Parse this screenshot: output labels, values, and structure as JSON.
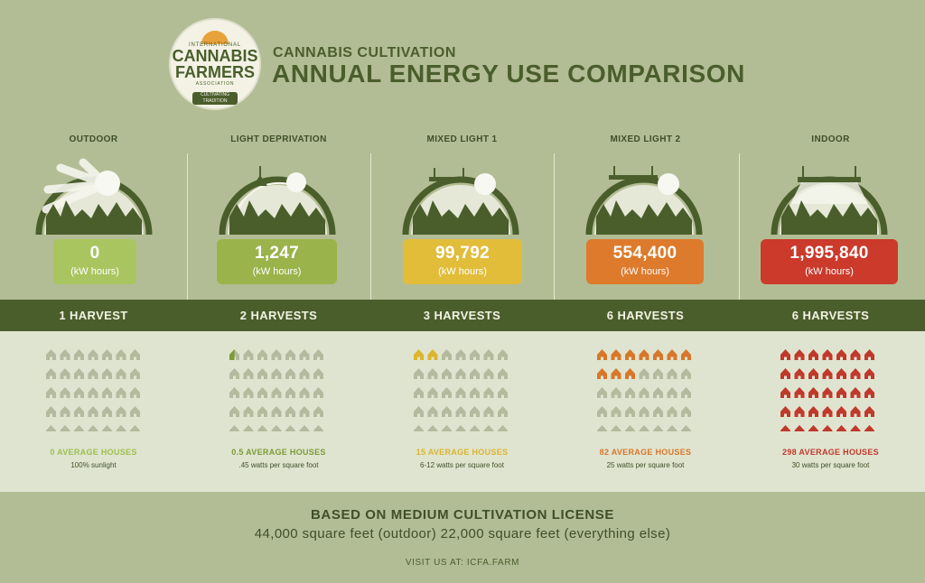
{
  "logo": {
    "line1": "INTERNATIONAL",
    "line2": "CANNABIS",
    "line3": "FARMERS",
    "line4": "ASSOCIATION",
    "ribbon": "CULTIVATING TRADITION"
  },
  "header": {
    "subtitle": "CANNABIS CULTIVATION",
    "title": "ANNUAL ENERGY USE COMPARISON"
  },
  "unit_label": "(kW hours)",
  "colors": {
    "background": "#b3bd95",
    "dark_green": "#4a5e2c",
    "house_grey": "#b4ba9e",
    "lower_panel": "#dfe4d0"
  },
  "columns": [
    {
      "name": "OUTDOOR",
      "kwh": "0",
      "harvests": "1 HARVEST",
      "houses_label": "0 AVERAGE HOUSES",
      "watts": "100% sunlight",
      "color": "#a9c55f",
      "text_color": "#9fbf4f",
      "houses_filled": 0,
      "partial": false,
      "scene": "sun"
    },
    {
      "name": "LIGHT DEPRIVATION",
      "kwh": "1,247",
      "harvests": "2 HARVESTS",
      "houses_label": "0.5 AVERAGE HOUSES",
      "watts": ".45 watts per square foot",
      "color": "#9ab34a",
      "text_color": "#7d9a35",
      "houses_filled": 0,
      "partial": true,
      "scene": "lamp"
    },
    {
      "name": "MIXED LIGHT 1",
      "kwh": "99,792",
      "harvests": "3 HARVESTS",
      "houses_label": "15 AVERAGE HOUSES",
      "watts": "6-12 watts per square foot",
      "color": "#e2bd3a",
      "text_color": "#dcb52e",
      "houses_filled": 2,
      "partial": false,
      "scene": "mixed"
    },
    {
      "name": "MIXED LIGHT 2",
      "kwh": "554,400",
      "harvests": "6 HARVESTS",
      "houses_label": "82 AVERAGE HOUSES",
      "watts": "25 watts per square foot",
      "color": "#dd7a2b",
      "text_color": "#d8772a",
      "houses_filled": 10,
      "partial": false,
      "scene": "mixed"
    },
    {
      "name": "INDOOR",
      "kwh": "1,995,840",
      "harvests": "6 HARVESTS",
      "houses_label": "298 AVERAGE HOUSES",
      "watts": "30 watts per square foot",
      "color": "#cb3a2b",
      "text_color": "#c0392b",
      "houses_filled": 35,
      "partial": false,
      "scene": "indoor"
    }
  ],
  "footer": {
    "line1": "BASED ON MEDIUM CULTIVATION LICENSE",
    "line2": "44,000 square feet (outdoor) 22,000 square feet (everything else)",
    "line3": "VISIT US AT: ICFA.FARM"
  }
}
